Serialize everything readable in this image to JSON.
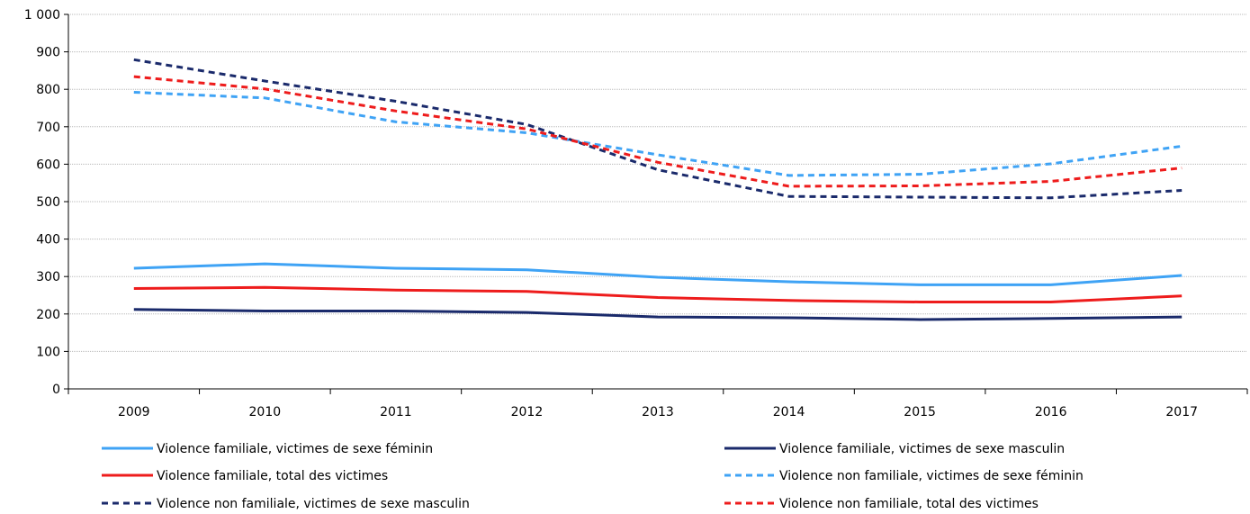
{
  "chart_data": {
    "type": "line",
    "title": "",
    "xlabel": "",
    "ylabel": "",
    "x": [
      "2009",
      "2010",
      "2011",
      "2012",
      "2013",
      "2014",
      "2015",
      "2016",
      "2017"
    ],
    "ylim": [
      0,
      1000
    ],
    "yticks": [
      0,
      100,
      200,
      300,
      400,
      500,
      600,
      700,
      800,
      900,
      1000
    ],
    "ytick_labels": [
      "0",
      "100",
      "200",
      "300",
      "400",
      "500",
      "600",
      "700",
      "800",
      "900",
      "1 000"
    ],
    "grid": true,
    "legend_position": "bottom",
    "series": [
      {
        "name": "Violence familiale, victimes de sexe féminin",
        "values": [
          322,
          334,
          322,
          318,
          298,
          286,
          278,
          278,
          303
        ],
        "color": "#3fa3f5",
        "dash": false
      },
      {
        "name": "Violence familiale, victimes de sexe masculin",
        "values": [
          212,
          208,
          208,
          204,
          192,
          190,
          185,
          188,
          192
        ],
        "color": "#1a2a6b",
        "dash": false
      },
      {
        "name": "Violence familiale, total des victimes",
        "values": [
          268,
          271,
          264,
          260,
          244,
          236,
          232,
          232,
          248
        ],
        "color": "#ee1c1c",
        "dash": false
      },
      {
        "name": "Violence non familiale, victimes de sexe féminin",
        "values": [
          792,
          777,
          713,
          684,
          625,
          570,
          573,
          601,
          648
        ],
        "color": "#3fa3f5",
        "dash": true
      },
      {
        "name": "Violence non familiale, victimes de sexe masculin",
        "values": [
          879,
          822,
          768,
          706,
          585,
          514,
          512,
          510,
          530
        ],
        "color": "#1a2a6b",
        "dash": true
      },
      {
        "name": "Violence non familiale, total des victimes",
        "values": [
          834,
          801,
          742,
          694,
          605,
          541,
          542,
          554,
          590
        ],
        "color": "#ee1c1c",
        "dash": true
      }
    ]
  }
}
